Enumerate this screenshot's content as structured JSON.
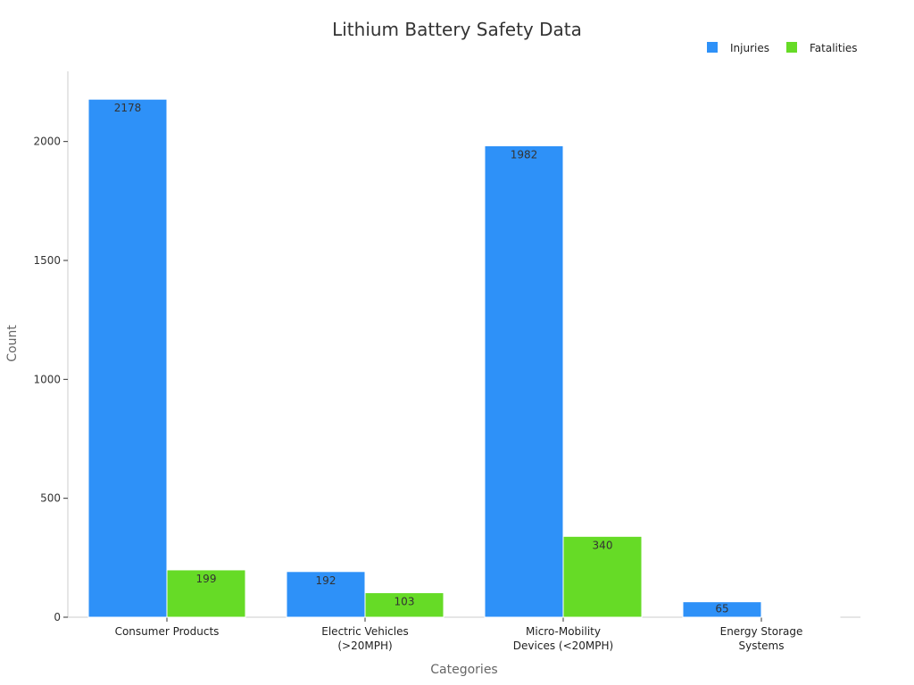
{
  "chart_data": {
    "type": "bar",
    "title": "Lithium Battery Safety Data",
    "xlabel": "Categories",
    "ylabel": "Count",
    "categories": [
      [
        "Consumer Products"
      ],
      [
        "Electric Vehicles",
        "(>20MPH)"
      ],
      [
        "Micro-Mobility",
        "Devices (<20MPH)"
      ],
      [
        "Energy Storage",
        "Systems"
      ]
    ],
    "series": [
      {
        "name": "Injuries",
        "color": "#2E91F8",
        "values": [
          2178,
          192,
          1982,
          65
        ],
        "labels": [
          "2178",
          "192",
          "1982",
          "65"
        ]
      },
      {
        "name": "Fatalities",
        "color": "#66DB26",
        "values": [
          199,
          103,
          340,
          2
        ],
        "labels": [
          "199",
          "103",
          "340",
          ""
        ]
      }
    ],
    "ylim": [
      0,
      2295
    ],
    "yticks": [
      0,
      500,
      1000,
      1500,
      2000
    ],
    "grid": false,
    "legend_position": "top-right"
  }
}
